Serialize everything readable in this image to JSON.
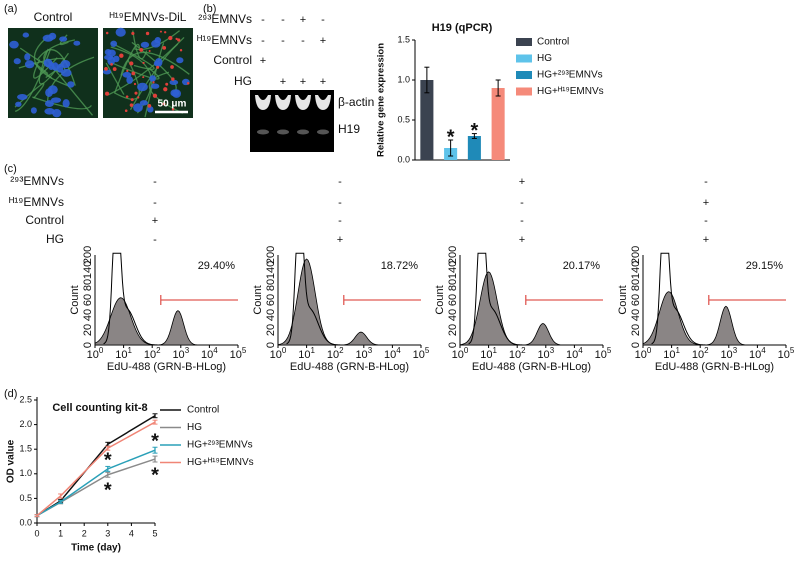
{
  "panels": {
    "a": "(a)",
    "b": "(b)",
    "c": "(c)",
    "d": "(d)"
  },
  "microscopy": {
    "titles": [
      "Control",
      "ᴴ¹⁹EMNVs-DiL"
    ],
    "scale_bar": "50 μm"
  },
  "gel": {
    "conditions": [
      {
        "label": "²⁹³EMNVs",
        "marks": [
          "-",
          "-",
          "+",
          "-"
        ]
      },
      {
        "label": "ᴴ¹⁹EMNVs",
        "marks": [
          "-",
          "-",
          "-",
          "+"
        ]
      },
      {
        "label": "Control",
        "marks": [
          "+",
          null,
          null,
          null
        ]
      },
      {
        "label": "HG",
        "marks": [
          null,
          "+",
          "+",
          "+"
        ]
      }
    ],
    "bands": [
      "β-actin",
      "H19"
    ]
  },
  "flow": {
    "conditions": [
      {
        "label": "²⁹³EMNVs",
        "marks": [
          "-",
          "-",
          "+",
          "-"
        ]
      },
      {
        "label": "ᴴ¹⁹EMNVs",
        "marks": [
          "-",
          "-",
          "-",
          "+"
        ]
      },
      {
        "label": "Control",
        "marks": [
          "+",
          "-",
          "-",
          "-"
        ]
      },
      {
        "label": "HG",
        "marks": [
          "-",
          "+",
          "+",
          "+"
        ]
      }
    ],
    "percentages": [
      "29.40%",
      "18.72%",
      "20.17%",
      "29.15%"
    ],
    "ylabel": "Count",
    "xlabel": "EdU-488 (GRN-B-HLog)",
    "ytick_labels": [
      "0",
      "20",
      "40",
      "60",
      "80",
      "140",
      "200"
    ],
    "xtick_base": "10",
    "xtick_exponents": [
      0,
      1,
      2,
      3,
      4,
      5
    ]
  },
  "chart_data": [
    {
      "type": "bar",
      "title": "H19 (qPCR)",
      "ylabel": "Relative gene expression",
      "categories": [
        "Control",
        "HG",
        "HG+²⁹³EMNVs",
        "HG+ᴴ¹⁹EMNVs"
      ],
      "values": [
        1.0,
        0.15,
        0.3,
        0.9
      ],
      "errors": [
        0.16,
        0.1,
        0.03,
        0.1
      ],
      "colors": [
        "#3b4350",
        "#5ec3ea",
        "#1f8ab8",
        "#f58a7a"
      ],
      "annotations": [
        null,
        "*",
        "*",
        null
      ],
      "ylim": [
        0,
        1.5
      ],
      "yticks": [
        {
          "value": 0,
          "label": "0.0"
        },
        {
          "value": 0.5,
          "label": "0.5"
        },
        {
          "value": 1,
          "label": "1.0"
        },
        {
          "value": 1.5,
          "label": "1.5"
        }
      ],
      "legend": "right"
    },
    {
      "type": "line",
      "title": "Cell counting kit-8",
      "xlabel": "Time (day)",
      "ylabel": "OD value",
      "x": [
        0,
        1,
        3,
        5
      ],
      "series": [
        {
          "name": "Control",
          "color": "#111111",
          "values": [
            0.15,
            0.45,
            1.6,
            2.18
          ],
          "errors": [
            0.02,
            0.03,
            0.04,
            0.04
          ],
          "annotations": [
            null,
            null,
            null,
            null
          ]
        },
        {
          "name": "HG",
          "color": "#8a8a8a",
          "values": [
            0.15,
            0.42,
            0.98,
            1.3
          ],
          "errors": [
            0.02,
            0.03,
            0.05,
            0.06
          ],
          "annotations": [
            null,
            null,
            "*",
            "*"
          ]
        },
        {
          "name": "HG+²⁹³EMNVs",
          "color": "#2aa0b8",
          "values": [
            0.15,
            0.43,
            1.1,
            1.48
          ],
          "errors": [
            0.02,
            0.03,
            0.05,
            0.06
          ],
          "annotations": [
            null,
            null,
            "*",
            "*"
          ]
        },
        {
          "name": "HG+ᴴ¹⁹EMNVs",
          "color": "#f08576",
          "values": [
            0.15,
            0.55,
            1.52,
            2.05
          ],
          "errors": [
            0.02,
            0.04,
            0.04,
            0.04
          ],
          "annotations": [
            null,
            null,
            null,
            null
          ]
        }
      ],
      "xlim": [
        0,
        5
      ],
      "xticks": [
        0,
        1,
        2,
        3,
        4,
        5
      ],
      "ylim": [
        0,
        2.5
      ],
      "yticks": [
        {
          "value": 0,
          "label": "0.0"
        },
        {
          "value": 0.5,
          "label": "0.5"
        },
        {
          "value": 1,
          "label": "1.0"
        },
        {
          "value": 1.5,
          "label": "1.5"
        },
        {
          "value": 2,
          "label": "2.0"
        },
        {
          "value": 2.5,
          "label": "2.5"
        }
      ],
      "legend": "right"
    }
  ]
}
